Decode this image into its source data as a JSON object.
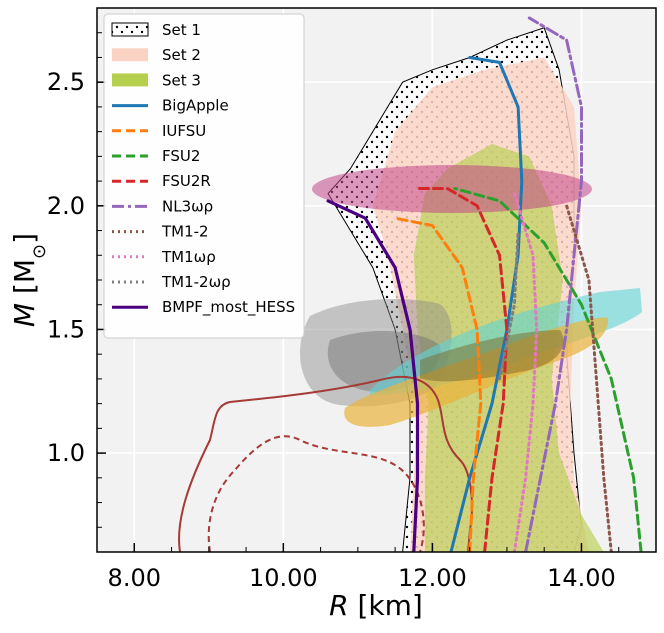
{
  "chart_data": {
    "type": "line",
    "xlabel_parts": [
      "R",
      " [km]"
    ],
    "ylabel_parts": [
      "M",
      " [M",
      "⊙",
      "]"
    ],
    "xlim": [
      7.5,
      15.0
    ],
    "ylim": [
      0.6,
      2.8
    ],
    "xticks": [
      8.0,
      10.0,
      12.0,
      14.0
    ],
    "xtick_labels": [
      "8.00",
      "10.00",
      "12.00",
      "14.00"
    ],
    "yticks": [
      1.0,
      1.5,
      2.0,
      2.5
    ],
    "ytick_labels": [
      "1.0",
      "1.5",
      "2.0",
      "2.5"
    ],
    "grid": true,
    "legend_position": "top-left",
    "colors": {
      "background": "#f2f2f2",
      "set1": "#000000",
      "set2": "#fbd3c4",
      "set3": "#b7cf4f",
      "BigApple": "#1f77b4",
      "IUFSU": "#ff7f0e",
      "FSU2": "#2ca02c",
      "FSU2R": "#d62728",
      "NL3wr": "#9467bd",
      "TM1-2": "#8c564b",
      "TM1wr": "#e377c2",
      "TM1-2wr": "#7f7f7f",
      "BMPF_most_HESS": "#4b0082",
      "magenta_band": "#c2478a",
      "cyan_region": "#5fd3d6",
      "orange_region": "#e9b43c",
      "gray_region": "#8a8a8a",
      "red_contour": "#a53a36"
    },
    "bands": [
      {
        "name": "Set 1",
        "style": "hatch-dots",
        "points": [
          [
            10.6,
            2.05
          ],
          [
            10.9,
            2.15
          ],
          [
            11.2,
            2.3
          ],
          [
            11.4,
            2.4
          ],
          [
            11.6,
            2.5
          ],
          [
            12.0,
            2.55
          ],
          [
            12.5,
            2.6
          ],
          [
            13.0,
            2.67
          ],
          [
            13.5,
            2.72
          ],
          [
            13.7,
            2.55
          ],
          [
            13.9,
            2.2
          ],
          [
            13.9,
            1.8
          ],
          [
            13.8,
            1.4
          ],
          [
            13.9,
            1.0
          ],
          [
            14.0,
            0.7
          ],
          [
            13.9,
            0.6
          ],
          [
            11.6,
            0.6
          ],
          [
            11.7,
            0.9
          ],
          [
            11.7,
            1.2
          ],
          [
            11.5,
            1.5
          ],
          [
            11.2,
            1.75
          ],
          [
            10.8,
            1.95
          ]
        ]
      },
      {
        "name": "Set 2",
        "style": "fill",
        "points": [
          [
            11.2,
            2.0
          ],
          [
            11.5,
            2.3
          ],
          [
            12.0,
            2.48
          ],
          [
            12.7,
            2.55
          ],
          [
            13.5,
            2.6
          ],
          [
            13.9,
            2.4
          ],
          [
            14.0,
            2.0
          ],
          [
            13.9,
            1.6
          ],
          [
            13.85,
            1.2
          ],
          [
            13.9,
            0.9
          ],
          [
            14.1,
            0.6
          ],
          [
            11.7,
            0.6
          ],
          [
            11.75,
            0.9
          ],
          [
            11.8,
            1.2
          ],
          [
            11.6,
            1.5
          ],
          [
            11.4,
            1.8
          ]
        ]
      },
      {
        "name": "Set 3",
        "style": "fill",
        "points": [
          [
            11.9,
            2.05
          ],
          [
            12.2,
            2.15
          ],
          [
            12.8,
            2.25
          ],
          [
            13.3,
            2.2
          ],
          [
            13.6,
            2.0
          ],
          [
            13.75,
            1.7
          ],
          [
            13.6,
            1.3
          ],
          [
            13.7,
            1.0
          ],
          [
            14.0,
            0.75
          ],
          [
            14.3,
            0.6
          ],
          [
            11.9,
            0.6
          ],
          [
            11.9,
            0.9
          ],
          [
            11.95,
            1.2
          ],
          [
            11.8,
            1.5
          ],
          [
            11.75,
            1.8
          ]
        ]
      }
    ],
    "series": [
      {
        "name": "BigApple",
        "style": "solid",
        "points": [
          [
            12.25,
            0.6
          ],
          [
            12.5,
            0.9
          ],
          [
            12.8,
            1.2
          ],
          [
            13.0,
            1.5
          ],
          [
            13.15,
            1.8
          ],
          [
            13.2,
            2.1
          ],
          [
            13.15,
            2.4
          ],
          [
            12.9,
            2.58
          ],
          [
            12.5,
            2.6
          ]
        ]
      },
      {
        "name": "IUFSU",
        "style": "dashed",
        "points": [
          [
            12.5,
            0.6
          ],
          [
            12.55,
            0.9
          ],
          [
            12.65,
            1.2
          ],
          [
            12.6,
            1.5
          ],
          [
            12.4,
            1.75
          ],
          [
            12.0,
            1.92
          ],
          [
            11.5,
            1.95
          ]
        ]
      },
      {
        "name": "FSU2",
        "style": "dashed",
        "points": [
          [
            14.8,
            0.6
          ],
          [
            14.7,
            0.9
          ],
          [
            14.4,
            1.3
          ],
          [
            14.0,
            1.6
          ],
          [
            13.5,
            1.85
          ],
          [
            12.9,
            2.02
          ],
          [
            12.3,
            2.07
          ]
        ]
      },
      {
        "name": "FSU2R",
        "style": "dashed",
        "points": [
          [
            12.7,
            0.6
          ],
          [
            12.8,
            0.9
          ],
          [
            12.95,
            1.2
          ],
          [
            13.0,
            1.5
          ],
          [
            12.9,
            1.8
          ],
          [
            12.6,
            2.0
          ],
          [
            12.2,
            2.07
          ],
          [
            11.8,
            2.07
          ]
        ]
      },
      {
        "name": "NL3ωρ",
        "style": "dashdot",
        "points": [
          [
            13.25,
            0.6
          ],
          [
            13.45,
            0.9
          ],
          [
            13.65,
            1.2
          ],
          [
            13.8,
            1.5
          ],
          [
            13.9,
            1.8
          ],
          [
            14.0,
            2.1
          ],
          [
            14.0,
            2.4
          ],
          [
            13.8,
            2.67
          ],
          [
            13.3,
            2.76
          ]
        ]
      },
      {
        "name": "TM1-2",
        "style": "dotted",
        "points": [
          [
            14.4,
            0.6
          ],
          [
            14.3,
            0.9
          ],
          [
            14.2,
            1.3
          ],
          [
            14.1,
            1.7
          ],
          [
            13.8,
            2.0
          ]
        ]
      },
      {
        "name": "TM1ωρ",
        "style": "dotted",
        "points": [
          [
            13.1,
            0.6
          ],
          [
            13.25,
            0.9
          ],
          [
            13.35,
            1.2
          ],
          [
            13.4,
            1.5
          ],
          [
            13.35,
            1.8
          ],
          [
            13.1,
            2.05
          ]
        ]
      },
      {
        "name": "TM1-2ωρ",
        "style": "dotted",
        "points": [
          [
            12.9,
            1.3
          ],
          [
            13.1,
            1.6
          ],
          [
            13.15,
            1.9
          ]
        ]
      },
      {
        "name": "BMPF_most_HESS",
        "style": "solid",
        "points": [
          [
            11.75,
            0.6
          ],
          [
            11.8,
            0.9
          ],
          [
            11.8,
            1.2
          ],
          [
            11.7,
            1.5
          ],
          [
            11.5,
            1.75
          ],
          [
            11.1,
            1.95
          ],
          [
            10.6,
            2.02
          ]
        ]
      }
    ]
  }
}
